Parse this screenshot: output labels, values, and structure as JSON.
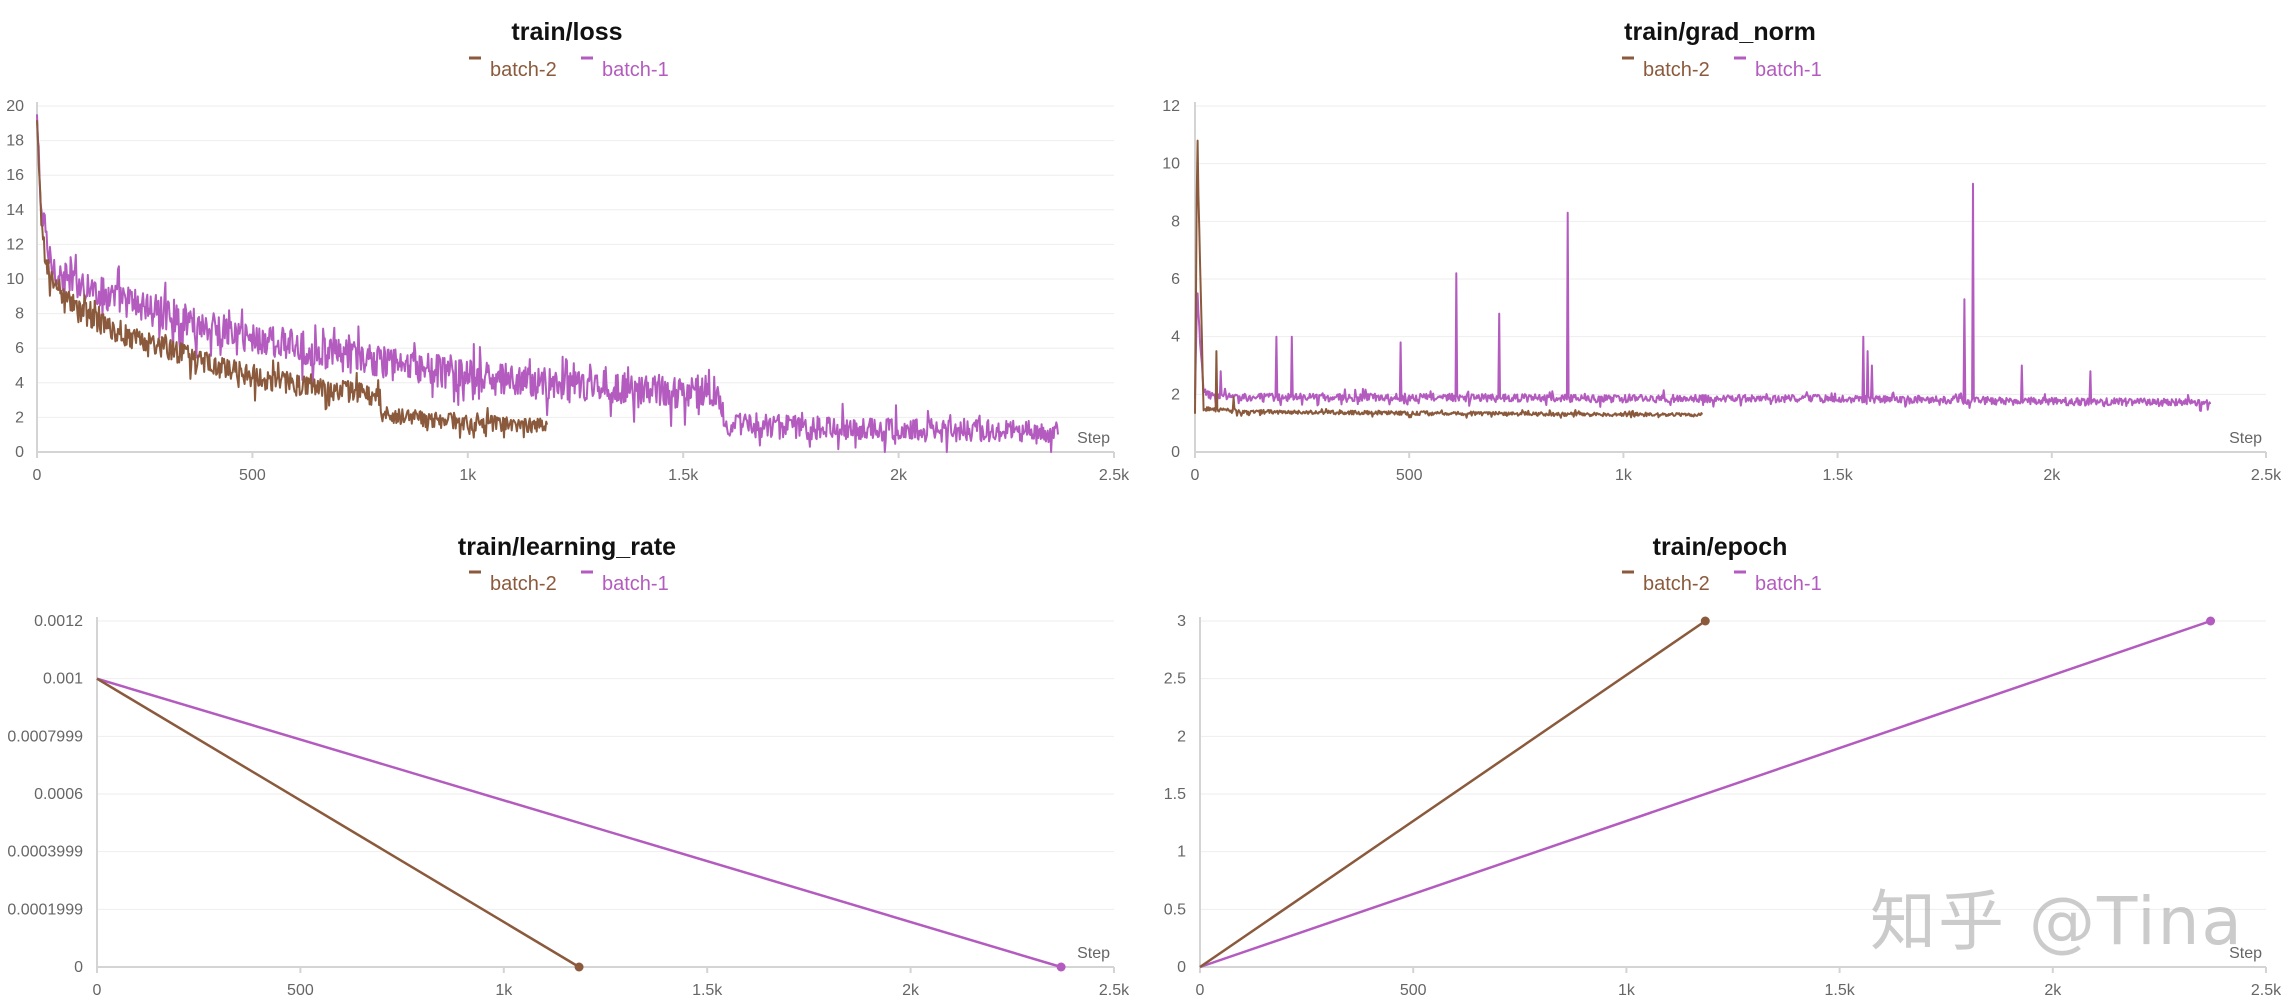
{
  "series_colors": {
    "batch-2": "#8b5a3c",
    "batch-1": "#b35bbf"
  },
  "grid_color": "#eeeeee",
  "axis_color": "#d4d4d4",
  "watermark": "知乎 @Tina",
  "chart_data": [
    {
      "type": "line",
      "title": "train/loss",
      "xlabel": "Step",
      "ylabel": "",
      "xlim": [
        0,
        2500
      ],
      "ylim": [
        0,
        20
      ],
      "xticks": [
        0,
        500,
        1000,
        1500,
        2000,
        2500
      ],
      "xtick_labels": [
        "0",
        "500",
        "1k",
        "1.5k",
        "2k",
        "2.5k"
      ],
      "yticks": [
        0,
        2,
        4,
        6,
        8,
        10,
        12,
        14,
        16,
        18,
        20
      ],
      "ytick_labels": [
        "0",
        "2",
        "4",
        "6",
        "8",
        "10",
        "12",
        "14",
        "16",
        "18",
        "20"
      ],
      "legend": [
        "batch-2",
        "batch-1"
      ],
      "series": [
        {
          "name": "batch-1",
          "x": [
            0,
            10,
            30,
            60,
            100,
            150,
            200,
            300,
            400,
            500,
            600,
            700,
            800,
            900,
            1000,
            1100,
            1200,
            1300,
            1400,
            1500,
            1580,
            1600,
            1700,
            1800,
            1900,
            2000,
            2100,
            2200,
            2300,
            2370
          ],
          "y": [
            19,
            14,
            11,
            10,
            9.8,
            9.2,
            8.8,
            8.0,
            7.2,
            6.6,
            6.1,
            5.6,
            5.2,
            4.8,
            4.4,
            4.1,
            3.9,
            3.8,
            3.6,
            3.5,
            3.5,
            1.6,
            1.5,
            1.4,
            1.4,
            1.3,
            1.25,
            1.2,
            1.15,
            1.1
          ],
          "noise": 1.6
        },
        {
          "name": "batch-2",
          "x": [
            0,
            10,
            30,
            60,
            100,
            150,
            200,
            300,
            400,
            500,
            600,
            700,
            790,
            800,
            900,
            1000,
            1100,
            1185
          ],
          "y": [
            19,
            13,
            10,
            9.2,
            8.2,
            7.4,
            6.8,
            6.0,
            5.1,
            4.4,
            3.9,
            3.6,
            3.3,
            2.2,
            1.9,
            1.7,
            1.6,
            1.5
          ],
          "noise": 1.1
        }
      ]
    },
    {
      "type": "line",
      "title": "train/grad_norm",
      "xlabel": "Step",
      "ylabel": "",
      "xlim": [
        0,
        2500
      ],
      "ylim": [
        0,
        12
      ],
      "xticks": [
        0,
        500,
        1000,
        1500,
        2000,
        2500
      ],
      "xtick_labels": [
        "0",
        "500",
        "1k",
        "1.5k",
        "2k",
        "2.5k"
      ],
      "yticks": [
        0,
        2,
        4,
        6,
        8,
        10,
        12
      ],
      "ytick_labels": [
        "0",
        "2",
        "4",
        "6",
        "8",
        "10",
        "12"
      ],
      "legend": [
        "batch-2",
        "batch-1"
      ],
      "series": [
        {
          "name": "batch-1",
          "x": [
            0,
            5,
            20,
            100,
            500,
            1000,
            1500,
            2000,
            2370
          ],
          "y": [
            1.8,
            5.5,
            2.0,
            1.9,
            1.9,
            1.85,
            1.85,
            1.75,
            1.7
          ],
          "noise": 0.32,
          "spikes": [
            [
              5,
              5.5
            ],
            [
              60,
              2.8
            ],
            [
              190,
              4.0
            ],
            [
              225,
              4.0
            ],
            [
              480,
              3.8
            ],
            [
              610,
              6.2
            ],
            [
              710,
              4.8
            ],
            [
              870,
              8.3
            ],
            [
              1560,
              4.0
            ],
            [
              1570,
              3.5
            ],
            [
              1580,
              3.0
            ],
            [
              1795,
              5.3
            ],
            [
              1815,
              9.3
            ],
            [
              1930,
              3.0
            ],
            [
              2090,
              2.8
            ]
          ]
        },
        {
          "name": "batch-2",
          "x": [
            0,
            5,
            20,
            100,
            500,
            1000,
            1185
          ],
          "y": [
            1.3,
            10.8,
            1.5,
            1.4,
            1.35,
            1.3,
            1.3
          ],
          "noise": 0.16,
          "spikes": [
            [
              5,
              10.8
            ],
            [
              50,
              3.5
            ],
            [
              90,
              1.9
            ]
          ]
        }
      ]
    },
    {
      "type": "line",
      "title": "train/learning_rate",
      "xlabel": "Step",
      "ylabel": "",
      "xlim": [
        0,
        2500
      ],
      "ylim": [
        0,
        0.0012
      ],
      "xticks": [
        0,
        500,
        1000,
        1500,
        2000,
        2500
      ],
      "xtick_labels": [
        "0",
        "500",
        "1k",
        "1.5k",
        "2k",
        "2.5k"
      ],
      "yticks": [
        0,
        0.0002,
        0.0004,
        0.0006,
        0.0008,
        0.001,
        0.0012
      ],
      "ytick_labels": [
        "0",
        "0.0001999",
        "0.0003999",
        "0.0006",
        "0.0007999",
        "0.001",
        "0.0012"
      ],
      "legend": [
        "batch-2",
        "batch-1"
      ],
      "series": [
        {
          "name": "batch-1",
          "x": [
            0,
            2370
          ],
          "y": [
            0.001,
            0
          ],
          "end_marker": true
        },
        {
          "name": "batch-2",
          "x": [
            0,
            1185
          ],
          "y": [
            0.001,
            0
          ],
          "end_marker": true
        }
      ]
    },
    {
      "type": "line",
      "title": "train/epoch",
      "xlabel": "Step",
      "ylabel": "",
      "xlim": [
        0,
        2500
      ],
      "ylim": [
        0,
        3
      ],
      "xticks": [
        0,
        500,
        1000,
        1500,
        2000,
        2500
      ],
      "xtick_labels": [
        "0",
        "500",
        "1k",
        "1.5k",
        "2k",
        "2.5k"
      ],
      "yticks": [
        0,
        0.5,
        1,
        1.5,
        2,
        2.5,
        3
      ],
      "ytick_labels": [
        "0",
        "0.5",
        "1",
        "1.5",
        "2",
        "2.5",
        "3"
      ],
      "legend": [
        "batch-2",
        "batch-1"
      ],
      "series": [
        {
          "name": "batch-1",
          "x": [
            0,
            2370
          ],
          "y": [
            0,
            3
          ],
          "end_marker": true
        },
        {
          "name": "batch-2",
          "x": [
            0,
            1185
          ],
          "y": [
            0,
            3
          ],
          "end_marker": true
        }
      ]
    }
  ]
}
